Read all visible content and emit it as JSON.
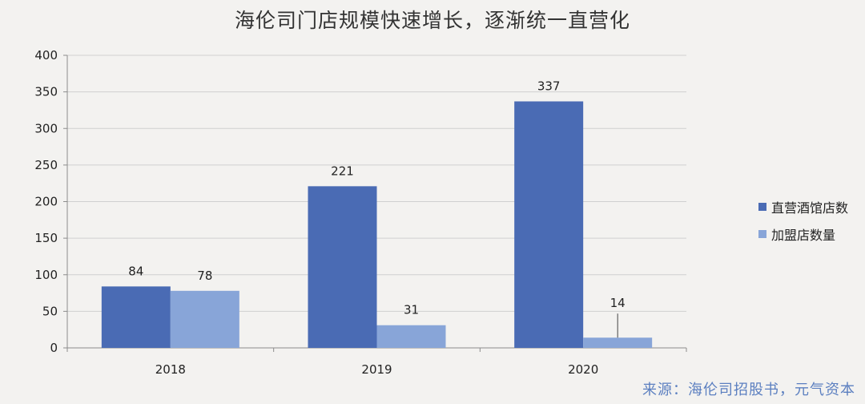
{
  "chart_data": {
    "type": "bar",
    "title": "海伦司门店规模快速增长，逐渐统一直营化",
    "categories": [
      "2018",
      "2019",
      "2020"
    ],
    "series": [
      {
        "name": "直营酒馆店数",
        "values": [
          84,
          221,
          337
        ],
        "color": "#4a6bb4"
      },
      {
        "name": "加盟店数量",
        "values": [
          78,
          31,
          14
        ],
        "color": "#88a5d8"
      }
    ],
    "ylim": [
      0,
      400
    ],
    "yticks": [
      0,
      50,
      100,
      150,
      200,
      250,
      300,
      350,
      400
    ],
    "grid": true,
    "legend": "right"
  },
  "source_note": "来源：海伦司招股书，元气资本"
}
